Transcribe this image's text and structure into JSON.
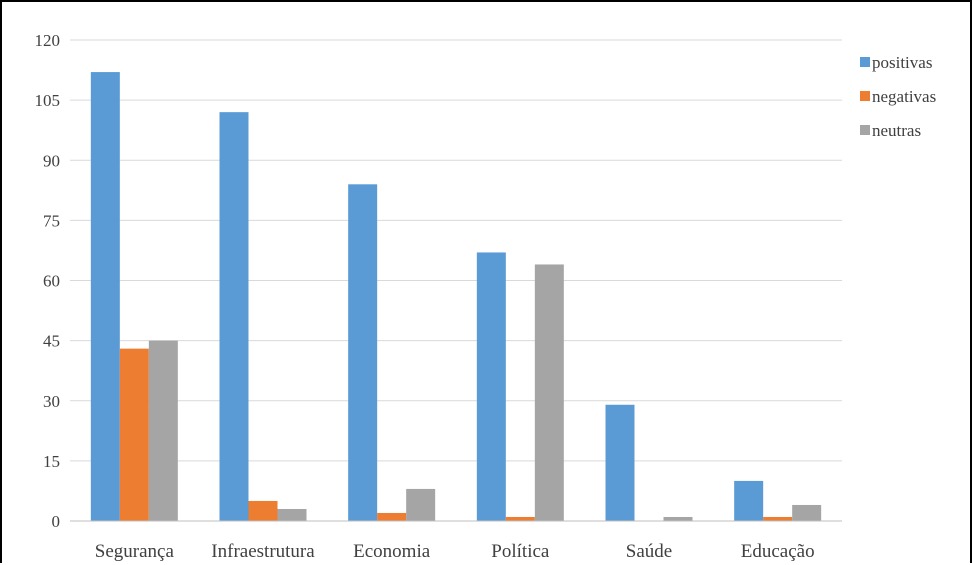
{
  "chart_data": {
    "type": "bar",
    "categories": [
      "Segurança",
      "Infraestrutura",
      "Economia",
      "Política",
      "Saúde",
      "Educação"
    ],
    "series": [
      {
        "name": "positivas",
        "color": "#5b9bd5",
        "values": [
          112,
          102,
          84,
          67,
          29,
          10
        ]
      },
      {
        "name": "negativas",
        "color": "#ed7d31",
        "values": [
          43,
          5,
          2,
          1,
          0,
          1
        ]
      },
      {
        "name": "neutras",
        "color": "#a5a5a5",
        "values": [
          45,
          3,
          8,
          64,
          1,
          4
        ]
      }
    ],
    "y_ticks": [
      "0",
      "15",
      "30",
      "45",
      "60",
      "75",
      "90",
      "105",
      "120"
    ],
    "ylim": [
      0,
      120
    ],
    "grid": true,
    "legend_position": "top-right",
    "gridline_color": "#d9d9d9",
    "axis_color": "#bfbfbf",
    "text_color": "#404040"
  }
}
